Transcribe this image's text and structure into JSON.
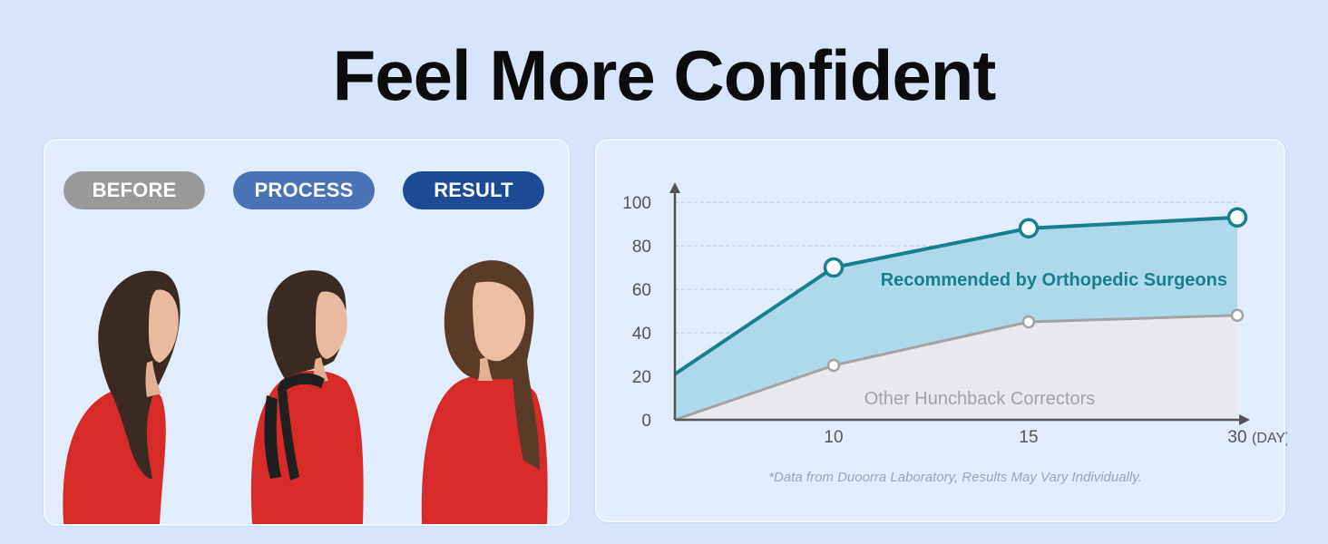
{
  "headline": "Feel More Confident",
  "stages": [
    {
      "label": "BEFORE",
      "color": "#9a9a9a"
    },
    {
      "label": "PROCESS",
      "color": "#4a72b6"
    },
    {
      "label": "RESULT",
      "color": "#1d4a94"
    }
  ],
  "colors": {
    "background": "#d6e5fb",
    "recommended_line": "#177f8e",
    "recommended_fill": "#a8d6e9",
    "other_line": "#a3a3a3",
    "other_fill": "#e8e9ee",
    "shirt": "#d82a28"
  },
  "chart_data": {
    "type": "area",
    "x": [
      0,
      10,
      15,
      30
    ],
    "x_tick_labels": [
      "10",
      "15",
      "30"
    ],
    "x_unit": "(DAY)",
    "y_tick_labels": [
      "0",
      "20",
      "40",
      "60",
      "80",
      "100"
    ],
    "ylim": [
      0,
      100
    ],
    "grid": true,
    "series": [
      {
        "name": "Recommended by Orthopedic Surgeons",
        "values": [
          21,
          70,
          88,
          93
        ]
      },
      {
        "name": "Other Hunchback Correctors",
        "values": [
          0,
          25,
          45,
          48
        ]
      }
    ],
    "footnote": "*Data from Duoorra Laboratory, Results May Vary Individually."
  }
}
